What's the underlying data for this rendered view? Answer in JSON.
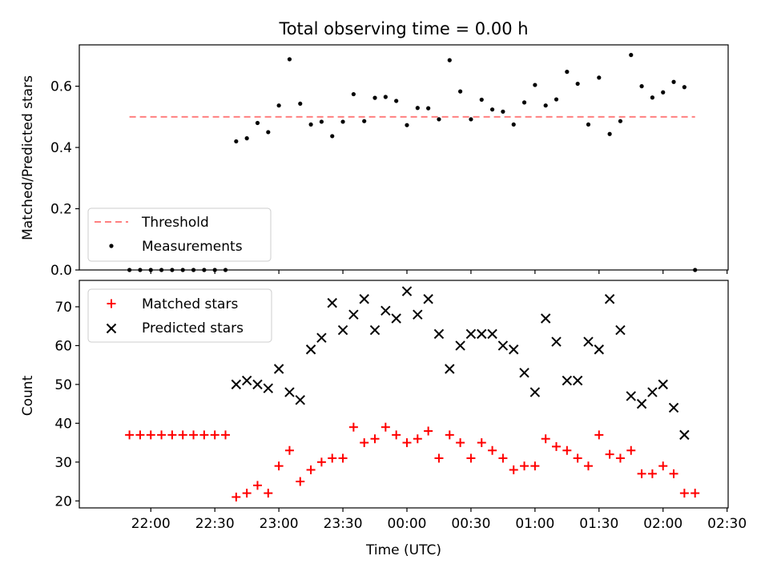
{
  "figure": {
    "title": "Total observing time = 0.00 h",
    "xlabel": "Time (UTC)"
  },
  "chart_data": [
    {
      "type": "scatter",
      "panel": "top",
      "ylabel": "Matched/Predicted stars",
      "ylim": [
        0.0,
        0.735
      ],
      "yticks": [
        0.0,
        0.2,
        0.4,
        0.6
      ],
      "ytick_labels": [
        "0.0",
        "0.2",
        "0.4",
        "0.6"
      ],
      "legend_placement": "lower-left",
      "threshold": {
        "name": "Threshold",
        "value": 0.5,
        "x_range": [
          "21:50",
          "02:15"
        ],
        "color": "#ff8080"
      },
      "series": [
        {
          "name": "Measurements",
          "color": "#000000",
          "x": [
            "21:50",
            "21:55",
            "22:00",
            "22:05",
            "22:10",
            "22:15",
            "22:20",
            "22:25",
            "22:30",
            "22:35",
            "22:40",
            "22:45",
            "22:50",
            "22:55",
            "23:00",
            "23:05",
            "23:10",
            "23:15",
            "23:20",
            "23:25",
            "23:30",
            "23:35",
            "23:40",
            "23:45",
            "23:50",
            "23:55",
            "00:00",
            "00:05",
            "00:10",
            "00:15",
            "00:20",
            "00:25",
            "00:30",
            "00:35",
            "00:40",
            "00:45",
            "00:50",
            "00:55",
            "01:00",
            "01:05",
            "01:10",
            "01:15",
            "01:20",
            "01:25",
            "01:30",
            "01:35",
            "01:40",
            "01:45",
            "01:50",
            "01:55",
            "02:00",
            "02:05",
            "02:10",
            "02:15"
          ],
          "y": [
            0.0,
            0.0,
            0.0,
            0.0,
            0.0,
            0.0,
            0.0,
            0.0,
            0.0,
            0.0,
            0.42,
            0.43,
            0.48,
            0.45,
            0.537,
            0.688,
            0.543,
            0.475,
            0.484,
            0.437,
            0.484,
            0.574,
            0.486,
            0.562,
            0.565,
            0.552,
            0.473,
            0.529,
            0.528,
            0.492,
            0.685,
            0.583,
            0.492,
            0.556,
            0.524,
            0.517,
            0.475,
            0.547,
            0.604,
            0.537,
            0.557,
            0.647,
            0.608,
            0.475,
            0.628,
            0.444,
            0.486,
            0.702,
            0.6,
            0.563,
            0.58,
            0.614,
            0.597,
            0.0
          ]
        }
      ]
    },
    {
      "type": "scatter",
      "panel": "bottom",
      "ylabel": "Count",
      "ylim": [
        18.2,
        76.8
      ],
      "yticks": [
        20,
        30,
        40,
        50,
        60,
        70
      ],
      "ytick_labels": [
        "20",
        "30",
        "40",
        "50",
        "60",
        "70"
      ],
      "xticks": [
        "22:00",
        "22:30",
        "23:00",
        "23:30",
        "00:00",
        "00:30",
        "01:00",
        "01:30",
        "02:00",
        "02:30"
      ],
      "legend_placement": "upper-left",
      "series": [
        {
          "name": "Matched stars",
          "marker": "+",
          "color": "#ff0000",
          "x": [
            "21:50",
            "21:55",
            "22:00",
            "22:05",
            "22:10",
            "22:15",
            "22:20",
            "22:25",
            "22:30",
            "22:35",
            "22:40",
            "22:45",
            "22:50",
            "22:55",
            "23:00",
            "23:05",
            "23:10",
            "23:15",
            "23:20",
            "23:25",
            "23:30",
            "23:35",
            "23:40",
            "23:45",
            "23:50",
            "23:55",
            "00:00",
            "00:05",
            "00:10",
            "00:15",
            "00:20",
            "00:25",
            "00:30",
            "00:35",
            "00:40",
            "00:45",
            "00:50",
            "00:55",
            "01:00",
            "01:05",
            "01:10",
            "01:15",
            "01:20",
            "01:25",
            "01:30",
            "01:35",
            "01:40",
            "01:45",
            "01:50",
            "01:55",
            "02:00",
            "02:05",
            "02:10",
            "02:15"
          ],
          "y": [
            37,
            37,
            37,
            37,
            37,
            37,
            37,
            37,
            37,
            37,
            21,
            22,
            24,
            22,
            29,
            33,
            25,
            28,
            30,
            31,
            31,
            39,
            35,
            36,
            39,
            37,
            35,
            36,
            38,
            31,
            37,
            35,
            31,
            35,
            33,
            31,
            28,
            29,
            29,
            36,
            34,
            33,
            31,
            29,
            37,
            32,
            31,
            33,
            27,
            27,
            29,
            27,
            22,
            22
          ]
        },
        {
          "name": "Predicted stars",
          "marker": "x",
          "color": "#000000",
          "x": [
            "22:40",
            "22:45",
            "22:50",
            "22:55",
            "23:00",
            "23:05",
            "23:10",
            "23:15",
            "23:20",
            "23:25",
            "23:30",
            "23:35",
            "23:40",
            "23:45",
            "23:50",
            "23:55",
            "00:00",
            "00:05",
            "00:10",
            "00:15",
            "00:20",
            "00:25",
            "00:30",
            "00:35",
            "00:40",
            "00:45",
            "00:50",
            "00:55",
            "01:00",
            "01:05",
            "01:10",
            "01:15",
            "01:20",
            "01:25",
            "01:30",
            "01:35",
            "01:40",
            "01:45",
            "01:50",
            "01:55",
            "02:00",
            "02:05",
            "02:10"
          ],
          "y": [
            50,
            51,
            50,
            49,
            54,
            48,
            46,
            59,
            62,
            71,
            64,
            68,
            72,
            64,
            69,
            67,
            74,
            68,
            72,
            63,
            54,
            60,
            63,
            63,
            63,
            60,
            59,
            53,
            48,
            67,
            61,
            51,
            51,
            61,
            59,
            72,
            64,
            47,
            45,
            48,
            50,
            44,
            37
          ]
        }
      ]
    }
  ]
}
